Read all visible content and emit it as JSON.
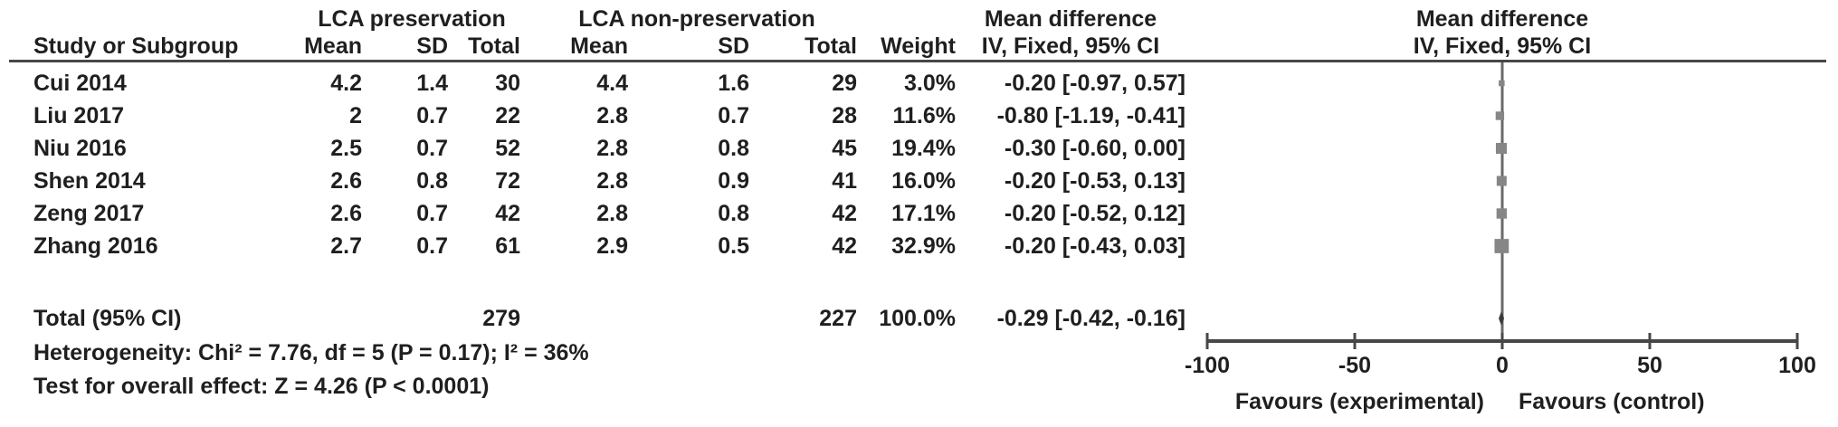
{
  "header": {
    "group1": "LCA preservation",
    "group2": "LCA non-preservation",
    "mean_difference": "Mean difference",
    "study": "Study or Subgroup",
    "mean": "Mean",
    "sd": "SD",
    "total": "Total",
    "weight": "Weight",
    "ci": "IV, Fixed, 95% CI"
  },
  "rows": [
    {
      "study": "Cui 2014",
      "mean1": "4.2",
      "sd1": "1.4",
      "total1": "30",
      "mean2": "4.4",
      "sd2": "1.6",
      "total2": "29",
      "weight": "3.0%",
      "ci": "-0.20 [-0.97, 0.57]"
    },
    {
      "study": "Liu 2017",
      "mean1": "2",
      "sd1": "0.7",
      "total1": "22",
      "mean2": "2.8",
      "sd2": "0.7",
      "total2": "28",
      "weight": "11.6%",
      "ci": "-0.80 [-1.19, -0.41]"
    },
    {
      "study": "Niu 2016",
      "mean1": "2.5",
      "sd1": "0.7",
      "total1": "52",
      "mean2": "2.8",
      "sd2": "0.8",
      "total2": "45",
      "weight": "19.4%",
      "ci": "-0.30 [-0.60, 0.00]"
    },
    {
      "study": "Shen 2014",
      "mean1": "2.6",
      "sd1": "0.8",
      "total1": "72",
      "mean2": "2.8",
      "sd2": "0.9",
      "total2": "41",
      "weight": "16.0%",
      "ci": "-0.20 [-0.53, 0.13]"
    },
    {
      "study": "Zeng 2017",
      "mean1": "2.6",
      "sd1": "0.7",
      "total1": "42",
      "mean2": "2.8",
      "sd2": "0.8",
      "total2": "42",
      "weight": "17.1%",
      "ci": "-0.20 [-0.52, 0.12]"
    },
    {
      "study": "Zhang 2016",
      "mean1": "2.7",
      "sd1": "0.7",
      "total1": "61",
      "mean2": "2.9",
      "sd2": "0.5",
      "total2": "42",
      "weight": "32.9%",
      "ci": "-0.20 [-0.43, 0.03]"
    }
  ],
  "total_row": {
    "label": "Total (95% CI)",
    "total1": "279",
    "total2": "227",
    "weight": "100.0%",
    "ci": "-0.29 [-0.42, -0.16]"
  },
  "footer": {
    "heterogeneity": "Heterogeneity: Chi² = 7.76, df = 5 (P = 0.17); I² = 36%",
    "overall_effect": "Test for overall effect: Z = 4.26 (P < 0.0001)"
  },
  "colors": {
    "square": "#868686",
    "zero_line": "#6a6a6a",
    "axis": "#474747",
    "diamond": "#3a3a3a"
  },
  "chart_data": {
    "type": "scatter",
    "subtype": "forest-plot",
    "title": "Mean difference",
    "method_label": "IV, Fixed, 95% CI",
    "x_axis": {
      "range": [
        -100,
        100
      ],
      "ticks": [
        -100,
        -50,
        0,
        50,
        100
      ],
      "favours_left": "Favours (experimental)",
      "favours_right": "Favours (control)"
    },
    "studies": [
      {
        "name": "Cui 2014",
        "md": -0.2,
        "ci_low": -0.97,
        "ci_high": 0.57,
        "weight_pct": 3.0
      },
      {
        "name": "Liu 2017",
        "md": -0.8,
        "ci_low": -1.19,
        "ci_high": -0.41,
        "weight_pct": 11.6
      },
      {
        "name": "Niu 2016",
        "md": -0.3,
        "ci_low": -0.6,
        "ci_high": 0.0,
        "weight_pct": 19.4
      },
      {
        "name": "Shen 2014",
        "md": -0.2,
        "ci_low": -0.53,
        "ci_high": 0.13,
        "weight_pct": 16.0
      },
      {
        "name": "Zeng 2017",
        "md": -0.2,
        "ci_low": -0.52,
        "ci_high": 0.12,
        "weight_pct": 17.1
      },
      {
        "name": "Zhang 2016",
        "md": -0.2,
        "ci_low": -0.43,
        "ci_high": 0.03,
        "weight_pct": 32.9
      }
    ],
    "total": {
      "name": "Total (95% CI)",
      "md": -0.29,
      "ci_low": -0.42,
      "ci_high": -0.16,
      "weight_pct": 100.0,
      "n1": 279,
      "n2": 227
    },
    "heterogeneity": {
      "chi2": 7.76,
      "df": 5,
      "p": "0.17",
      "i2_pct": 36
    },
    "overall_effect": {
      "z": 4.26,
      "p": "< 0.0001"
    },
    "legend_position": "none",
    "grid": false
  }
}
